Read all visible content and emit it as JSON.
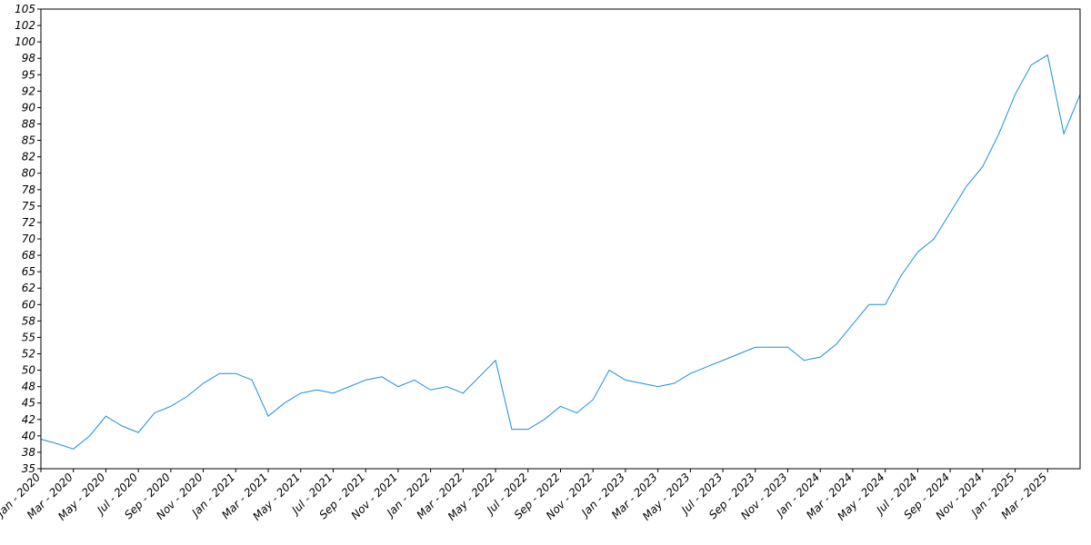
{
  "chart_data": {
    "type": "line",
    "x": [
      "2020-01",
      "2020-02",
      "2020-03",
      "2020-04",
      "2020-05",
      "2020-06",
      "2020-07",
      "2020-08",
      "2020-09",
      "2020-10",
      "2020-11",
      "2020-12",
      "2021-01",
      "2021-02",
      "2021-03",
      "2021-04",
      "2021-05",
      "2021-06",
      "2021-07",
      "2021-08",
      "2021-09",
      "2021-10",
      "2021-11",
      "2021-12",
      "2022-01",
      "2022-02",
      "2022-03",
      "2022-04",
      "2022-05",
      "2022-06",
      "2022-07",
      "2022-08",
      "2022-09",
      "2022-10",
      "2022-11",
      "2022-12",
      "2023-01",
      "2023-02",
      "2023-03",
      "2023-04",
      "2023-05",
      "2023-06",
      "2023-07",
      "2023-08",
      "2023-09",
      "2023-10",
      "2023-11",
      "2023-12",
      "2024-01",
      "2024-02",
      "2024-03",
      "2024-04",
      "2024-05",
      "2024-06",
      "2024-07",
      "2024-08",
      "2024-09",
      "2024-10",
      "2024-11",
      "2024-12",
      "2025-01",
      "2025-02",
      "2025-03",
      "2025-04",
      "2025-05"
    ],
    "series": [
      {
        "color": "#1a8fd6",
        "values": [
          39.5,
          38.8,
          38,
          40,
          43,
          41.5,
          40.5,
          43.5,
          44.5,
          46,
          48,
          49.5,
          49.5,
          48.5,
          43,
          45,
          46.5,
          47,
          46.5,
          47.5,
          48.5,
          49,
          47.5,
          48.5,
          47,
          47.5,
          46.5,
          49,
          51.5,
          41,
          41,
          42.5,
          44.5,
          43.5,
          45.5,
          50,
          48.5,
          48,
          47.5,
          48,
          49.5,
          50.5,
          51.5,
          52.5,
          53.5,
          53.5,
          53.5,
          51.5,
          52,
          54,
          57,
          60,
          60,
          64.5,
          68,
          70,
          74,
          78,
          81,
          86,
          92,
          96.5,
          98,
          86,
          92
        ]
      }
    ],
    "xlim": [
      "2020-01",
      "2025-05"
    ],
    "xticks": [
      {
        "value": "2020-01",
        "label": "Jan - 2020"
      },
      {
        "value": "2020-03",
        "label": "Mar - 2020"
      },
      {
        "value": "2020-05",
        "label": "May - 2020"
      },
      {
        "value": "2020-07",
        "label": "Jul - 2020"
      },
      {
        "value": "2020-09",
        "label": "Sep - 2020"
      },
      {
        "value": "2020-11",
        "label": "Nov - 2020"
      },
      {
        "value": "2021-01",
        "label": "Jan - 2021"
      },
      {
        "value": "2021-03",
        "label": "Mar - 2021"
      },
      {
        "value": "2021-05",
        "label": "May - 2021"
      },
      {
        "value": "2021-07",
        "label": "Jul - 2021"
      },
      {
        "value": "2021-09",
        "label": "Sep - 2021"
      },
      {
        "value": "2021-11",
        "label": "Nov - 2021"
      },
      {
        "value": "2022-01",
        "label": "Jan - 2022"
      },
      {
        "value": "2022-03",
        "label": "Mar - 2022"
      },
      {
        "value": "2022-05",
        "label": "May - 2022"
      },
      {
        "value": "2022-07",
        "label": "Jul - 2022"
      },
      {
        "value": "2022-09",
        "label": "Sep - 2022"
      },
      {
        "value": "2022-11",
        "label": "Nov - 2022"
      },
      {
        "value": "2023-01",
        "label": "Jan - 2023"
      },
      {
        "value": "2023-03",
        "label": "Mar - 2023"
      },
      {
        "value": "2023-05",
        "label": "May - 2023"
      },
      {
        "value": "2023-07",
        "label": "Jul - 2023"
      },
      {
        "value": "2023-09",
        "label": "Sep - 2023"
      },
      {
        "value": "2023-11",
        "label": "Nov - 2023"
      },
      {
        "value": "2024-01",
        "label": "Jan - 2024"
      },
      {
        "value": "2024-03",
        "label": "Mar - 2024"
      },
      {
        "value": "2024-05",
        "label": "May - 2024"
      },
      {
        "value": "2024-07",
        "label": "Jul - 2024"
      },
      {
        "value": "2024-09",
        "label": "Sep - 2024"
      },
      {
        "value": "2024-11",
        "label": "Nov - 2024"
      },
      {
        "value": "2025-01",
        "label": "Jan - 2025"
      },
      {
        "value": "2025-03",
        "label": "Mar - 2025"
      }
    ],
    "ylim": [
      35,
      105
    ],
    "yticks": [
      35,
      {
        "value": 37.5,
        "label": "38"
      },
      40,
      {
        "value": 42.5,
        "label": "42"
      },
      45,
      {
        "value": 47.5,
        "label": "48"
      },
      50,
      {
        "value": 52.5,
        "label": "52"
      },
      55,
      {
        "value": 57.5,
        "label": "58"
      },
      60,
      {
        "value": 62.5,
        "label": "62"
      },
      65,
      {
        "value": 67.5,
        "label": "68"
      },
      70,
      {
        "value": 72.5,
        "label": "72"
      },
      75,
      {
        "value": 77.5,
        "label": "78"
      },
      80,
      {
        "value": 82.5,
        "label": "82"
      },
      85,
      {
        "value": 87.5,
        "label": "88"
      },
      90,
      {
        "value": 92.5,
        "label": "92"
      },
      95,
      {
        "value": 97.5,
        "label": "98"
      },
      100,
      {
        "value": 102.5,
        "label": "102"
      },
      105
    ],
    "grid": false
  }
}
